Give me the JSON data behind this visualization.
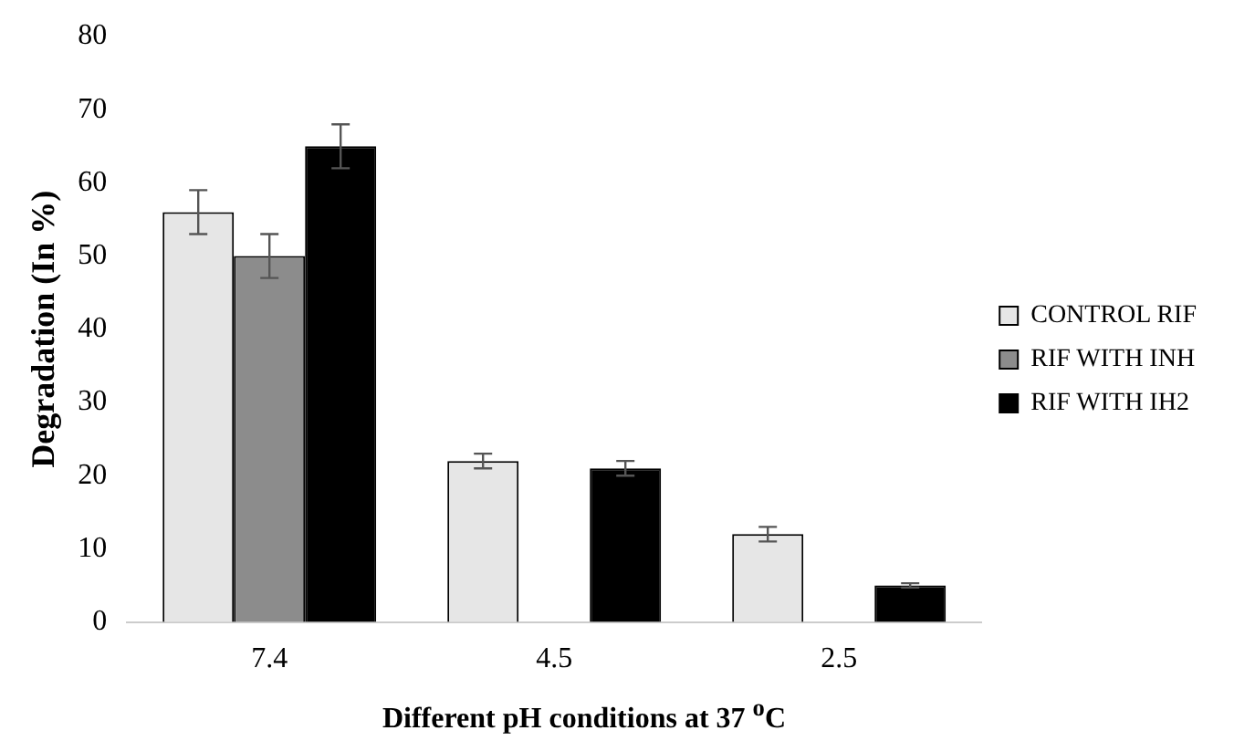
{
  "chart_data": {
    "type": "bar",
    "ylabel": "Degradation (In %)",
    "xlabel": "Different pH conditions at 37 $^{o}$C",
    "categories": [
      "7.4",
      "4.5",
      "2.5"
    ],
    "series": [
      {
        "name": "CONTROL RIF",
        "color": "#e6e6e6",
        "values": [
          56,
          22,
          12
        ],
        "errors": [
          3,
          1,
          1
        ]
      },
      {
        "name": "RIF WITH INH",
        "color": "#8c8c8c",
        "values": [
          50,
          null,
          null
        ],
        "errors": [
          3,
          null,
          null
        ]
      },
      {
        "name": "RIF WITH IH2",
        "color": "#000000",
        "values": [
          65,
          21,
          5
        ],
        "errors": [
          3,
          1,
          0.3
        ]
      }
    ],
    "ylim": [
      0,
      80
    ],
    "yticks": [
      0,
      10,
      20,
      30,
      40,
      50,
      60,
      70,
      80
    ],
    "grid": false,
    "legend": "right"
  }
}
